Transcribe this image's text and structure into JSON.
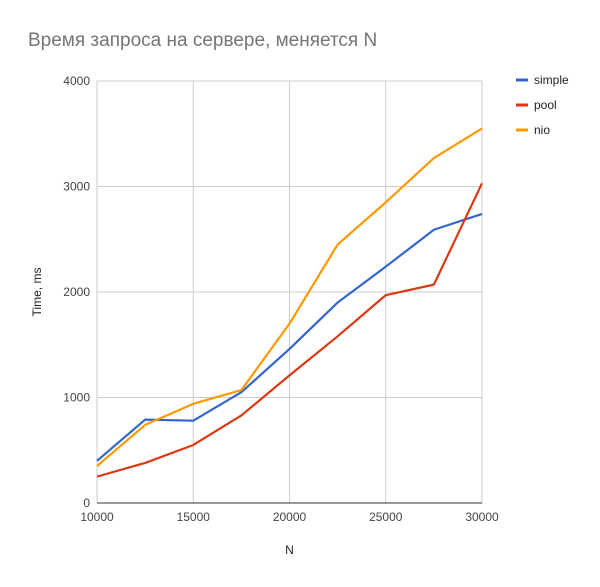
{
  "chart_data": {
    "type": "line",
    "title": "Время запроса на сервере, меняется N",
    "xlabel": "N",
    "ylabel": "Time, ms",
    "xlim": [
      10000,
      30000
    ],
    "ylim": [
      0,
      4000
    ],
    "xticks": [
      10000,
      15000,
      20000,
      25000,
      30000
    ],
    "yticks": [
      0,
      1000,
      2000,
      3000,
      4000
    ],
    "grid": true,
    "legend_position": "top-right",
    "x": [
      10000,
      12500,
      15000,
      17500,
      20000,
      22500,
      25000,
      27500,
      30000
    ],
    "series": [
      {
        "name": "simple",
        "color": "#3366cc",
        "values": [
          400,
          790,
          780,
          1050,
          1460,
          1900,
          2240,
          2590,
          2740
        ]
      },
      {
        "name": "pool",
        "color": "#dc3912",
        "values": [
          250,
          380,
          550,
          830,
          1210,
          1580,
          1970,
          2070,
          3030
        ]
      },
      {
        "name": "nio",
        "color": "#ff9900",
        "values": [
          350,
          740,
          940,
          1070,
          1700,
          2450,
          2850,
          3270,
          3550
        ]
      }
    ]
  }
}
